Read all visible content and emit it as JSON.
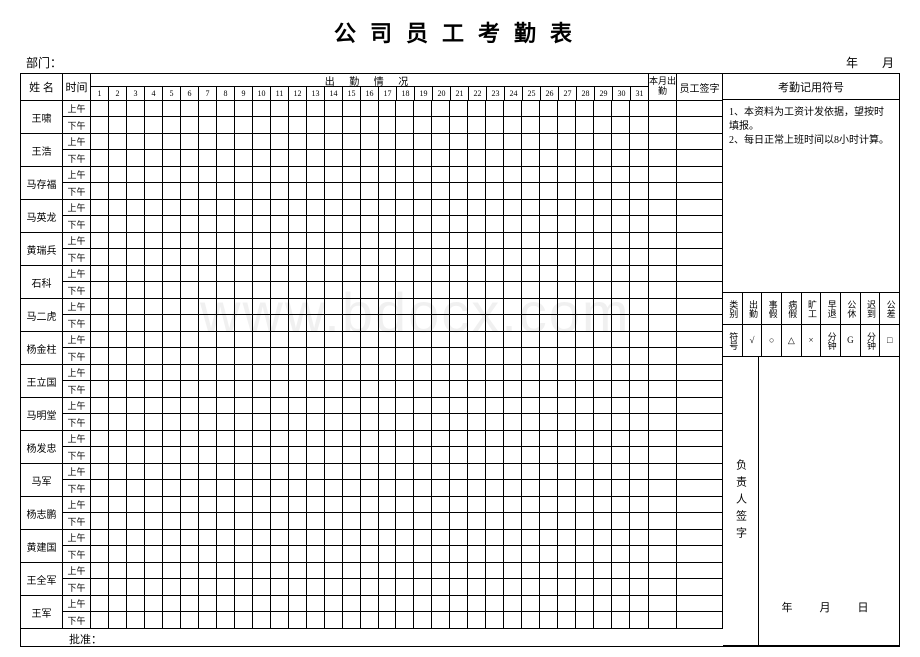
{
  "title": "公司员工考勤表",
  "dept_label": "部门：",
  "date_header": "年　　月",
  "headers": {
    "name": "姓 名",
    "time": "时间",
    "attendance": "出 勤 情 况",
    "month_total": "本月出勤",
    "signature": "员工签字",
    "symbol_title": "考勤记用符号"
  },
  "days": [
    "1",
    "2",
    "3",
    "4",
    "5",
    "6",
    "7",
    "8",
    "9",
    "10",
    "11",
    "12",
    "13",
    "14",
    "15",
    "16",
    "17",
    "18",
    "19",
    "20",
    "21",
    "22",
    "23",
    "24",
    "25",
    "26",
    "27",
    "28",
    "29",
    "30",
    "31"
  ],
  "halves": {
    "am": "上午",
    "pm": "下午"
  },
  "employees": [
    "王啸",
    "王浩",
    "马存福",
    "马英龙",
    "黄瑞兵",
    "石科",
    "马二虎",
    "杨金柱",
    "王立国",
    "马明堂",
    "杨发忠",
    "马军",
    "杨志鹏",
    "黄建国",
    "王全军",
    "王军"
  ],
  "notes": [
    "1、本资料为工资计发依据，望按时填报。",
    "2、每日正常上班时间以8小时计算。"
  ],
  "legend_headers": [
    "类别",
    "出勤",
    "事假",
    "病假",
    "旷工",
    "早退",
    "公休",
    "迟到",
    "公差"
  ],
  "legend_symbols_label": "符号",
  "legend_symbols": [
    "√",
    "○",
    "△",
    "×",
    "分钟",
    "G",
    "分钟",
    "□"
  ],
  "leader_sign": "负责人签字",
  "bottom_date": "年　月　日",
  "approval": "批准：",
  "watermark": "www.bdocx.com",
  "colors": {
    "border": "#000000",
    "background": "#ffffff",
    "text": "#000000"
  }
}
